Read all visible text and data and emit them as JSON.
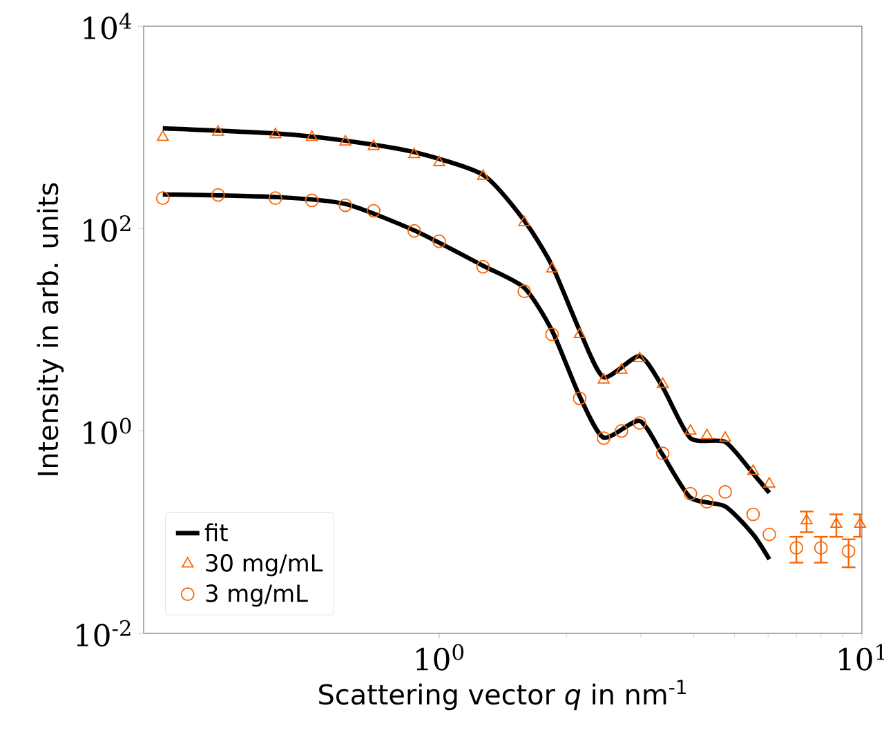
{
  "chart_data": {
    "type": "line",
    "xlabel": "Scattering vector *q* in nm$^{-1}$",
    "ylabel": "Intensity in arb. units",
    "log": "xy",
    "xlim": [
      0.2,
      10
    ],
    "ylim": [
      0.01,
      10000
    ],
    "xticks": [
      {
        "value": 1,
        "label": "10$^{0}$"
      },
      {
        "value": 10,
        "label": "10$^{1}$"
      }
    ],
    "yticks": [
      {
        "value": 0.01,
        "label": "10$^{-2}$"
      },
      {
        "value": 1,
        "label": "10$^{0}$"
      },
      {
        "value": 100,
        "label": "10$^{2}$"
      },
      {
        "value": 10000,
        "label": "10$^{4}$"
      }
    ],
    "legend": "bottom left",
    "series": [
      {
        "name": "fit",
        "color": "#000000",
        "marker": "none",
        "line_style": "solid",
        "x": [
          0.222,
          0.412,
          0.6,
          0.873,
          1.27,
          1.59,
          1.85,
          2.15,
          2.45,
          2.98,
          3.38,
          3.93,
          4.75,
          5.53,
          6.04
        ],
        "values": [
          980,
          870,
          740,
          570,
          340,
          120,
          43,
          9.8,
          3.4,
          5.5,
          2.7,
          0.85,
          0.78,
          0.38,
          0.245
        ]
      },
      {
        "color": "#000000",
        "marker": "none",
        "line_style": "solid",
        "x": [
          0.222,
          0.412,
          0.6,
          0.873,
          1.27,
          1.59,
          1.85,
          2.15,
          2.45,
          2.98,
          3.38,
          3.93,
          4.75,
          5.53,
          6.04
        ],
        "values": [
          218,
          205,
          175,
          96,
          43,
          26,
          9.8,
          2.2,
          0.86,
          1.26,
          0.58,
          0.22,
          0.18,
          0.095,
          0.054
        ]
      },
      {
        "name": "30 mg/mL",
        "type": "scatter",
        "color": "#fa6405",
        "marker": "triangle",
        "x": [
          0.222,
          0.3,
          0.41,
          0.5,
          0.6,
          0.7,
          0.873,
          1.0,
          1.27,
          1.59,
          1.85,
          2.15,
          2.45,
          2.7,
          2.98,
          3.38,
          3.93,
          4.3,
          4.75,
          5.53,
          6.04,
          7.4,
          8.7,
          9.9
        ],
        "values": [
          800,
          900,
          850,
          800,
          720,
          650,
          540,
          450,
          330,
          115,
          40,
          9,
          3.2,
          4.0,
          5.2,
          2.9,
          1.0,
          0.9,
          0.85,
          0.4,
          0.3,
          0.13,
          0.12,
          0.12
        ],
        "errors": [
          null,
          null,
          null,
          null,
          null,
          null,
          null,
          null,
          null,
          null,
          null,
          null,
          null,
          null,
          null,
          null,
          null,
          null,
          null,
          null,
          null,
          0.03,
          0.03,
          0.03
        ]
      },
      {
        "name": "3 mg/mL",
        "type": "scatter",
        "color": "#fa6405",
        "marker": "circle",
        "x": [
          0.222,
          0.3,
          0.41,
          0.5,
          0.6,
          0.7,
          0.873,
          1.0,
          1.27,
          1.59,
          1.85,
          2.15,
          2.45,
          2.7,
          2.98,
          3.38,
          3.93,
          4.3,
          4.75,
          5.53,
          6.04,
          7.0,
          8.0,
          9.3
        ],
        "values": [
          200,
          215,
          200,
          190,
          170,
          150,
          95,
          75,
          42,
          24,
          9,
          2.1,
          0.85,
          1.0,
          1.2,
          0.6,
          0.24,
          0.2,
          0.25,
          0.15,
          0.095,
          0.07,
          0.07,
          0.065
        ],
        "errors": [
          null,
          null,
          null,
          null,
          null,
          null,
          null,
          null,
          null,
          null,
          null,
          null,
          null,
          null,
          null,
          null,
          null,
          null,
          null,
          null,
          null,
          0.02,
          0.02,
          0.02
        ]
      }
    ]
  }
}
